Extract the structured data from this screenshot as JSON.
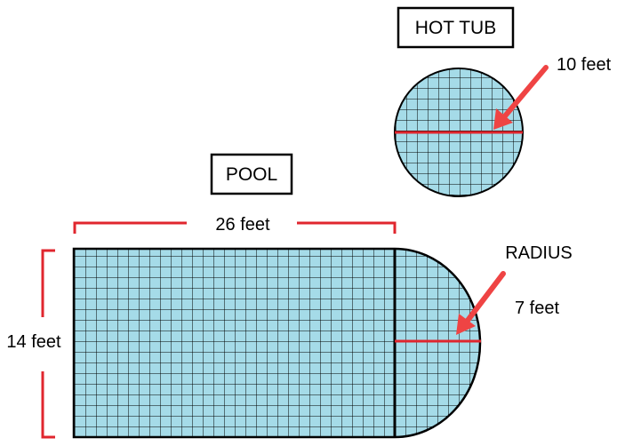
{
  "hot_tub": {
    "title": "HOT TUB",
    "measurement": "10 feet"
  },
  "pool": {
    "title": "POOL",
    "length": "26 feet",
    "width": "14 feet",
    "radius_label": "RADIUS",
    "radius": "7 feet"
  },
  "colors": {
    "water": "#a5dbe8",
    "grid": "#000000",
    "dimension": "#e0262e",
    "arrow": "#ef4444"
  }
}
